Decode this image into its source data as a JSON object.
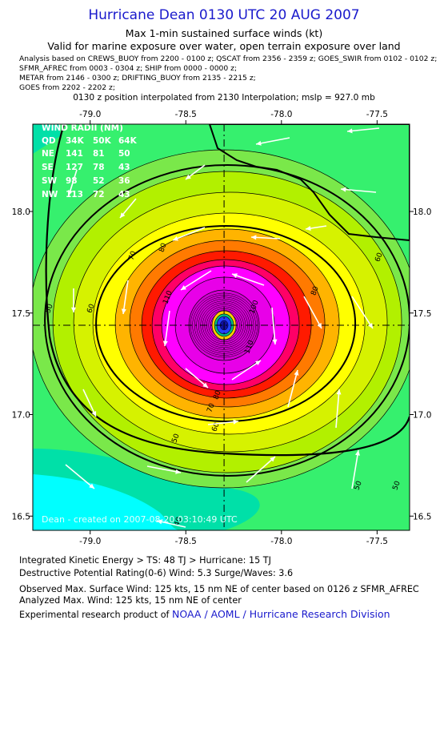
{
  "header": {
    "title": "Hurricane Dean 0130 UTC 20 AUG 2007",
    "subtitle1": "Max 1-min sustained surface winds (kt)",
    "subtitle2": "Valid for marine exposure over water, open terrain exposure over land",
    "analysis_lines": [
      "Analysis based on  CREWS_BUOY from 2200 - 0100 z;  QSCAT from 2356 - 2359 z;  GOES_SWIR from 0102 - 0102 z;",
      "SFMR_AFREC from 0003 - 0304 z;  SHIP from 0000 - 0000 z;",
      "METAR from 2146 - 0300 z;  DRIFTING_BUOY from 2135 - 2215 z;",
      "GOES from 2202 - 2202 z;"
    ],
    "position_note": "0130 z position interpolated from 2130 Interpolation; mslp = 927.0 mb"
  },
  "chart_data": {
    "type": "heatmap",
    "title": "Max 1-min sustained surface winds (kt)",
    "x_ticks": [
      "-79.0",
      "-78.5",
      "-78.0",
      "-77.5"
    ],
    "x_tick_values": [
      -79.0,
      -78.5,
      -78.0,
      -77.5
    ],
    "y_ticks": [
      "18.0",
      "17.5",
      "17.0",
      "16.5"
    ],
    "y_tick_values": [
      18.0,
      17.5,
      17.0,
      16.5
    ],
    "xlim": [
      -79.3,
      -77.33
    ],
    "ylim": [
      16.43,
      18.43
    ],
    "center": {
      "lon": -78.3,
      "lat": 17.44
    },
    "contour_levels_kt": [
      40,
      50,
      60,
      70,
      80,
      90,
      100,
      110,
      120
    ],
    "contour_labels": [
      "50",
      "60",
      "70",
      "80",
      "90",
      "100",
      "110",
      "120"
    ],
    "colors": {
      "cyan": "#00ffff",
      "teal": "#00e0a8",
      "green": "#36f06e",
      "lime": "#b2f000",
      "yellow": "#ffff00",
      "gold": "#ffb400",
      "orange": "#ff7a00",
      "red": "#ff1a00",
      "magenta": "#ff00ff",
      "violet": "#d200d2",
      "core": "#2040ff"
    },
    "wind_radii_table": {
      "title": "WIND RADII (NM)",
      "header": [
        "QD",
        "34K",
        "50K",
        "64K"
      ],
      "rows": [
        [
          "NE",
          "141",
          "81",
          "50"
        ],
        [
          "SE",
          "127",
          "78",
          "43"
        ],
        [
          "SW",
          "98",
          "52",
          "36"
        ],
        [
          "NW",
          "113",
          "72",
          "43"
        ]
      ]
    },
    "watermark": "Dean - created on 2007-08-20 03:10:49 UTC"
  },
  "footer": {
    "ike": "Integrated Kinetic Energy > TS: 48 TJ   > Hurricane: 15 TJ",
    "dpr": "Destructive Potential Rating(0-6)  Wind: 5.3 Surge/Waves: 3.6",
    "observed": "Observed Max. Surface Wind: 125 kts, 15 nm NE of center based on 0126 z SFMR_AFREC",
    "analyzed": "Analyzed Max. Wind: 125 kts, 15 nm NE of center",
    "research_prefix": "Experimental research product of",
    "research_org": "NOAA / AOML / Hurricane Research Division"
  }
}
